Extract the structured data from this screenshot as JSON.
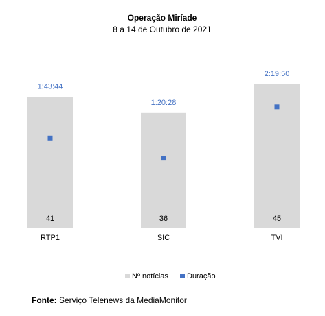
{
  "chart_data": {
    "type": "bar",
    "title": "Operação Miríade",
    "subtitle": "8 a 14 de Outubro de 2021",
    "categories": [
      "RTP1",
      "SIC",
      "TVI"
    ],
    "series": [
      {
        "name": "Nº notícias",
        "values": [
          41,
          36,
          45
        ],
        "labels": [
          "41",
          "36",
          "45"
        ],
        "color": "#D9D9D9"
      },
      {
        "name": "Duração",
        "values": [
          "1:43:44",
          "1:20:28",
          "2:19:50"
        ],
        "seconds": [
          6224,
          4828,
          8390
        ],
        "labels": [
          "1:43:44",
          "1:20:28",
          "2:19:50"
        ],
        "color": "#4472C4",
        "marker": "square"
      }
    ],
    "legend_position": "bottom",
    "grid": false
  },
  "source": {
    "label": "Fonte:",
    "text": " Serviço Telenews da MediaMonitor"
  }
}
